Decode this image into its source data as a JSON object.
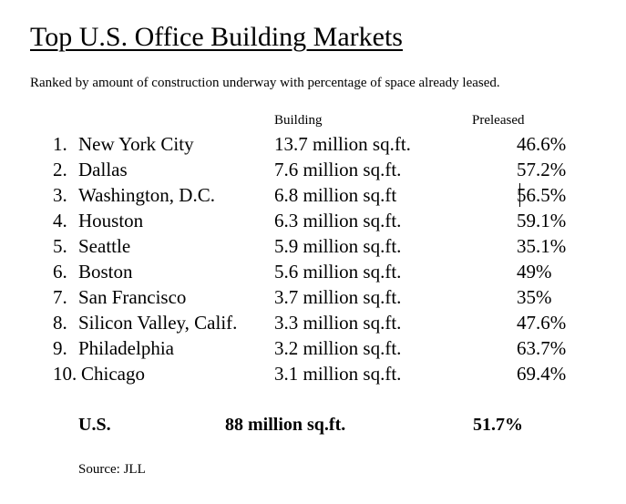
{
  "title": "Top U.S. Office Building Markets",
  "subtitle": "Ranked by amount of construction underway with percentage of space already leased.",
  "headers": {
    "building": "Building",
    "preleased": "Preleased"
  },
  "rows": [
    {
      "rank": "1.",
      "city": "New York City",
      "building": "13.7 million sq.ft.",
      "preleased": "46.6%"
    },
    {
      "rank": "2.",
      "city": "Dallas",
      "building": "7.6 million sq.ft.",
      "preleased": "57.2%"
    },
    {
      "rank": "3.",
      "city": "Washington, D.C.",
      "building": "6.8 million sq.ft",
      "preleased": "56.5%"
    },
    {
      "rank": "4.",
      "city": "Houston",
      "building": "6.3 million sq.ft.",
      "preleased": "59.1%"
    },
    {
      "rank": "5.",
      "city": "Seattle",
      "building": "5.9 million sq.ft.",
      "preleased": "35.1%"
    },
    {
      "rank": "6.",
      "city": "Boston",
      "building": "5.6 million sq.ft.",
      "preleased": "49%"
    },
    {
      "rank": "7.",
      "city": "San Francisco",
      "building": "3.7 million sq.ft.",
      "preleased": "35%"
    },
    {
      "rank": "8.",
      "city": "Silicon Valley, Calif.",
      "building": "3.3 million sq.ft.",
      "preleased": "47.6%"
    },
    {
      "rank": "9.",
      "city": "Philadelphia",
      "building": "3.2 million sq.ft.",
      "preleased": "63.7%"
    },
    {
      "rank": "10.",
      "city": "Chicago",
      "building": "3.1 million sq.ft.",
      "preleased": "69.4%"
    }
  ],
  "total": {
    "label": "U.S.",
    "building": "88 million sq.ft.",
    "preleased": "51.7%"
  },
  "source": "Source: JLL"
}
